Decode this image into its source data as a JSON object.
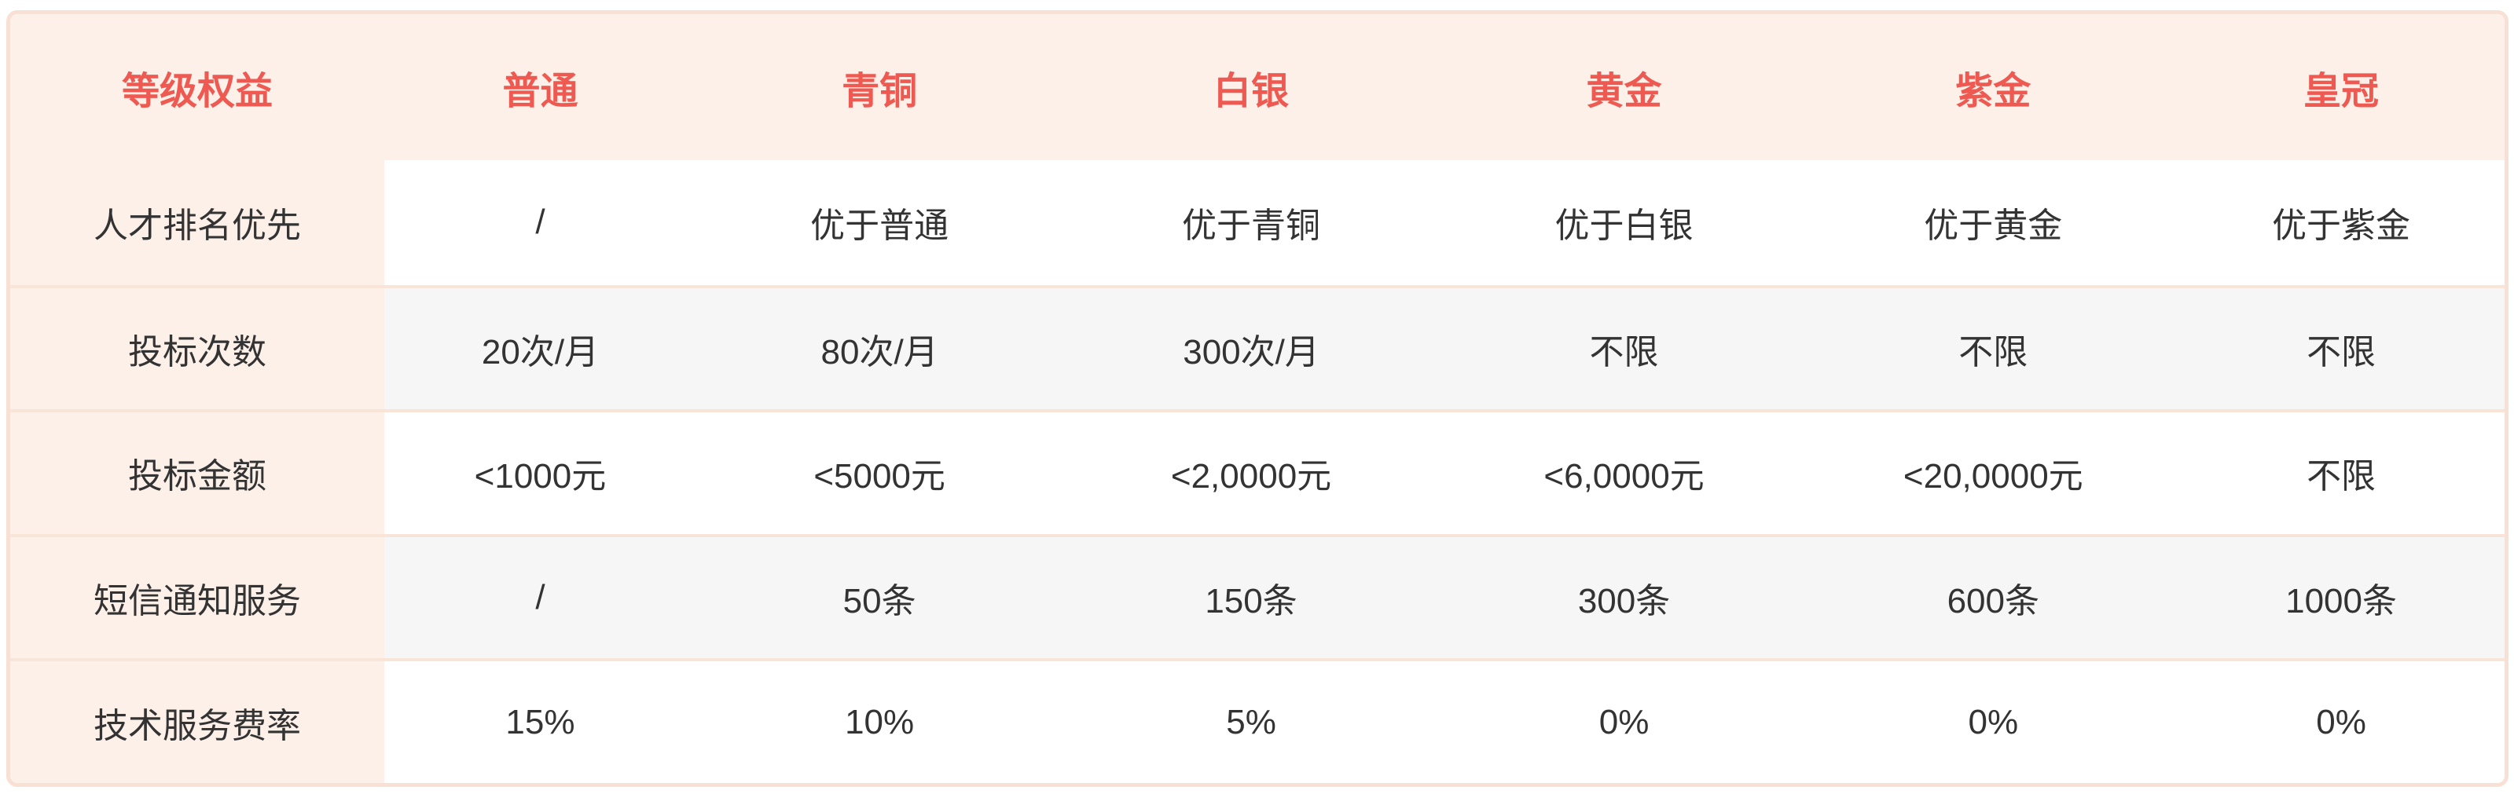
{
  "theme": {
    "accent_red": "#ee5a52",
    "header_bg": "#fdf0e9",
    "label_column_bg": "#fdf0e9",
    "stripe_row_bg": "#f6f6f7",
    "card_border": "#f8e1d4",
    "row_separator": "#f9e4d8",
    "body_text": "#333333",
    "page_bg": "#ffffff"
  },
  "table": {
    "header": [
      "等级权益",
      "普通",
      "青铜",
      "白银",
      "黄金",
      "紫金",
      "皇冠"
    ],
    "rows": [
      {
        "label": "人才排名优先",
        "values": [
          "/",
          "优于普通",
          "优于青铜",
          "优于白银",
          "优于黄金",
          "优于紫金"
        ]
      },
      {
        "label": "投标次数",
        "values": [
          "20次/月",
          "80次/月",
          "300次/月",
          "不限",
          "不限",
          "不限"
        ]
      },
      {
        "label": "投标金额",
        "values": [
          "<1000元",
          "<5000元",
          "<2,0000元",
          "<6,0000元",
          "<20,0000元",
          "不限"
        ]
      },
      {
        "label": "短信通知服务",
        "values": [
          "/",
          "50条",
          "150条",
          "300条",
          "600条",
          "1000条"
        ]
      },
      {
        "label": "技术服务费率",
        "values": [
          "15%",
          "10%",
          "5%",
          "0%",
          "0%",
          "0%"
        ]
      }
    ]
  }
}
